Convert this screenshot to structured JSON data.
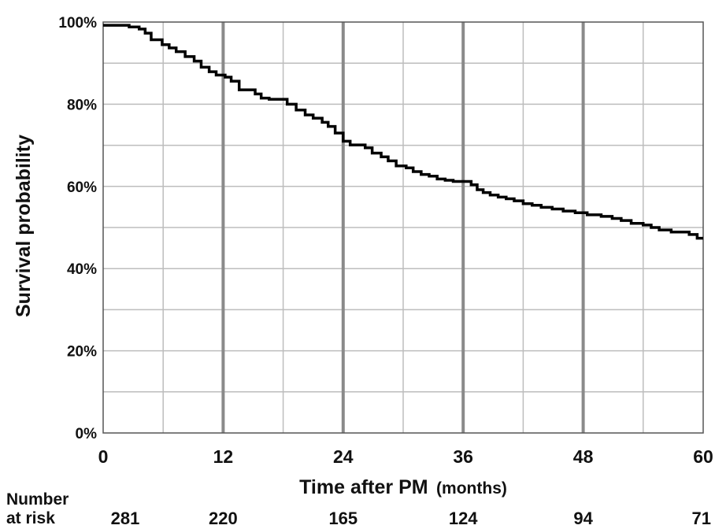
{
  "chart_data": {
    "type": "line",
    "title": "",
    "xlabel": "Time after PM",
    "xlabel_unit": "(months)",
    "ylabel": "Survival probability",
    "xlim": [
      0,
      60
    ],
    "ylim": [
      0,
      100
    ],
    "x_ticks": [
      0,
      12,
      24,
      36,
      48,
      60
    ],
    "y_ticks": [
      "0%",
      "20%",
      "40%",
      "60%",
      "80%",
      "100%"
    ],
    "grid": true,
    "x_minor_step": 6,
    "y_minor_step": 10,
    "series": [
      {
        "step": true,
        "points": [
          [
            0,
            99.2
          ],
          [
            2.0,
            99.2
          ],
          [
            2.6,
            98.8
          ],
          [
            3.6,
            98.3
          ],
          [
            4.2,
            97.3
          ],
          [
            4.8,
            95.7
          ],
          [
            5.9,
            94.5
          ],
          [
            6.6,
            93.7
          ],
          [
            7.3,
            92.8
          ],
          [
            8.2,
            91.6
          ],
          [
            9.1,
            90.5
          ],
          [
            9.8,
            89.0
          ],
          [
            10.6,
            87.9
          ],
          [
            11.3,
            87.1
          ],
          [
            12.2,
            86.6
          ],
          [
            12.8,
            85.6
          ],
          [
            13.6,
            83.5
          ],
          [
            15.2,
            82.5
          ],
          [
            15.8,
            81.5
          ],
          [
            16.6,
            81.2
          ],
          [
            18.4,
            80.0
          ],
          [
            19.3,
            78.6
          ],
          [
            20.2,
            77.4
          ],
          [
            21.0,
            76.6
          ],
          [
            21.9,
            75.6
          ],
          [
            22.5,
            74.6
          ],
          [
            23.2,
            73.0
          ],
          [
            24.0,
            71.0
          ],
          [
            24.7,
            70.1
          ],
          [
            26.2,
            69.4
          ],
          [
            26.9,
            68.1
          ],
          [
            27.8,
            67.2
          ],
          [
            28.5,
            66.2
          ],
          [
            29.3,
            65.0
          ],
          [
            30.3,
            64.5
          ],
          [
            31.0,
            63.6
          ],
          [
            31.8,
            62.9
          ],
          [
            32.6,
            62.5
          ],
          [
            33.4,
            61.8
          ],
          [
            34.2,
            61.5
          ],
          [
            35.0,
            61.2
          ],
          [
            36.8,
            60.4
          ],
          [
            37.4,
            59.2
          ],
          [
            38.0,
            58.5
          ],
          [
            38.7,
            57.9
          ],
          [
            39.5,
            57.4
          ],
          [
            40.3,
            57.0
          ],
          [
            41.1,
            56.5
          ],
          [
            42.0,
            55.8
          ],
          [
            42.9,
            55.4
          ],
          [
            43.8,
            54.9
          ],
          [
            44.9,
            54.5
          ],
          [
            46.0,
            54.0
          ],
          [
            47.2,
            53.6
          ],
          [
            48.4,
            53.1
          ],
          [
            49.8,
            52.7
          ],
          [
            50.9,
            52.2
          ],
          [
            51.8,
            51.7
          ],
          [
            52.8,
            51.0
          ],
          [
            54.0,
            50.6
          ],
          [
            54.8,
            50.0
          ],
          [
            55.6,
            49.4
          ],
          [
            56.8,
            48.9
          ],
          [
            58.6,
            48.3
          ],
          [
            59.4,
            47.4
          ],
          [
            60.0,
            47.4
          ]
        ]
      }
    ],
    "number_at_risk": {
      "label_line1": "Number",
      "label_line2": "at risk",
      "times": [
        0,
        12,
        24,
        36,
        48,
        60
      ],
      "values": [
        "281",
        "220",
        "165",
        "124",
        "94",
        "71"
      ]
    }
  }
}
